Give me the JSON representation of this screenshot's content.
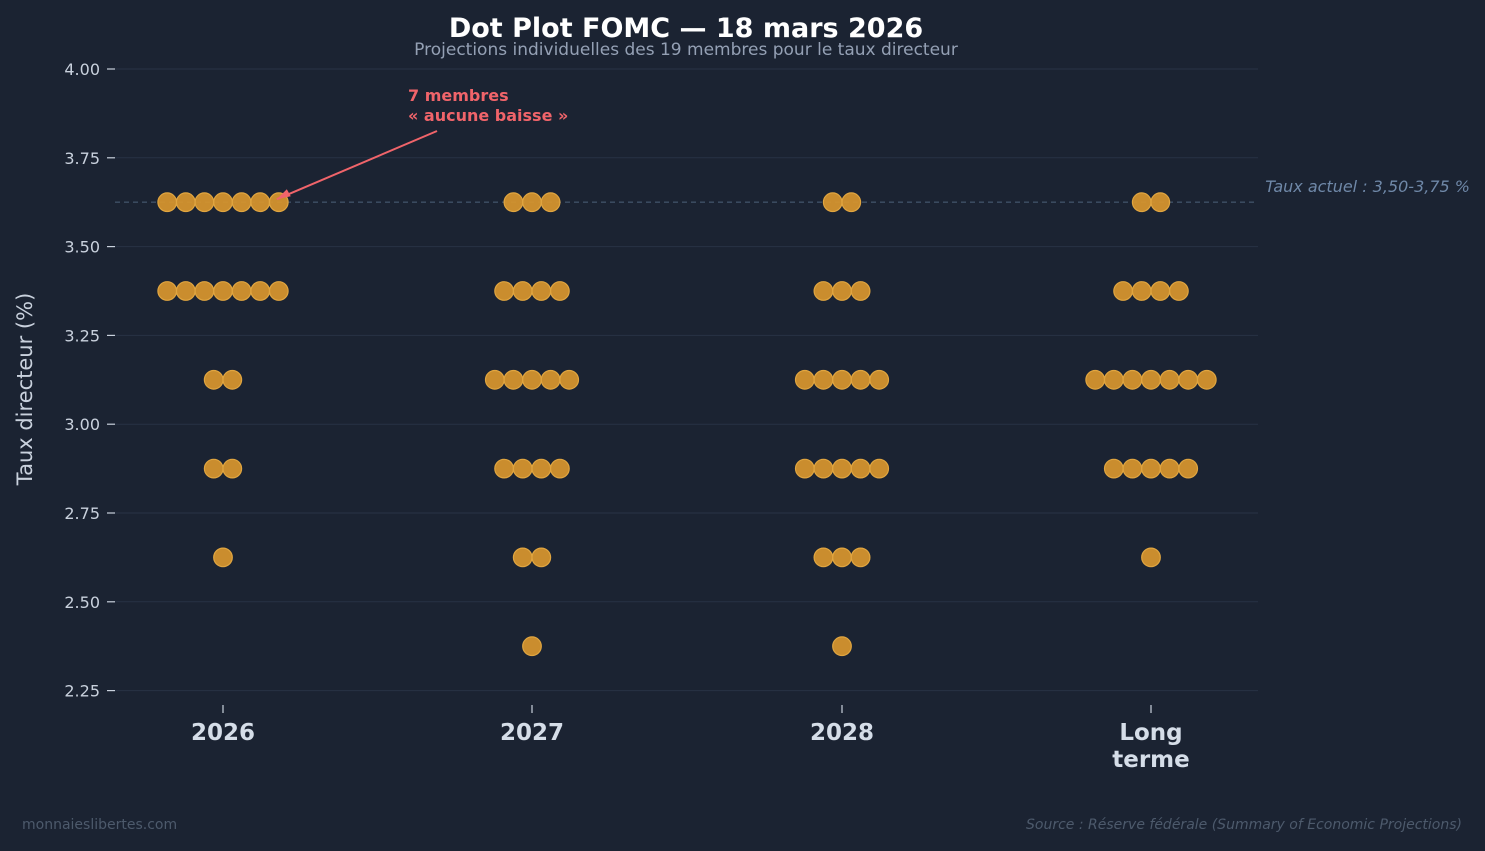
{
  "colors": {
    "background": "#1b2332",
    "dot_fill": "#d4942e",
    "dot_stroke": "#e0a540",
    "grid": "#283345",
    "title": "#ffffff",
    "subtitle": "#94a0b4",
    "tick_text": "#c9d1dd",
    "category_text": "#d5dde8",
    "axis_label": "#c9d1dd",
    "current_rate_line": "#3f5066",
    "current_rate_text": "#6f88a8",
    "annotation": "#f0646a",
    "footer": "#4d5a6c"
  },
  "chart_data": {
    "type": "scatter",
    "title": "Dot Plot FOMC — 18 mars 2026",
    "subtitle": "Projections individuelles des 19 membres pour le taux directeur",
    "xlabel": "",
    "ylabel": "Taux directeur (%)",
    "ylim": [
      2.2,
      4.0
    ],
    "yticks": [
      "2.25",
      "2.50",
      "2.75",
      "3.00",
      "3.25",
      "3.50",
      "3.75",
      "4.00"
    ],
    "grid": true,
    "categories": [
      "2026",
      "2027",
      "2028",
      "Long\nterme"
    ],
    "projections": [
      {
        "category": "2026",
        "levels": [
          {
            "rate": 3.625,
            "count": 7
          },
          {
            "rate": 3.375,
            "count": 7
          },
          {
            "rate": 3.125,
            "count": 2
          },
          {
            "rate": 2.875,
            "count": 2
          },
          {
            "rate": 2.625,
            "count": 1
          }
        ]
      },
      {
        "category": "2027",
        "levels": [
          {
            "rate": 3.625,
            "count": 3
          },
          {
            "rate": 3.375,
            "count": 4
          },
          {
            "rate": 3.125,
            "count": 5
          },
          {
            "rate": 2.875,
            "count": 4
          },
          {
            "rate": 2.625,
            "count": 2
          },
          {
            "rate": 2.375,
            "count": 1
          }
        ]
      },
      {
        "category": "2028",
        "levels": [
          {
            "rate": 3.625,
            "count": 2
          },
          {
            "rate": 3.375,
            "count": 3
          },
          {
            "rate": 3.125,
            "count": 5
          },
          {
            "rate": 2.875,
            "count": 5
          },
          {
            "rate": 2.625,
            "count": 3
          },
          {
            "rate": 2.375,
            "count": 1
          }
        ]
      },
      {
        "category": "Long\nterme",
        "levels": [
          {
            "rate": 3.625,
            "count": 2
          },
          {
            "rate": 3.375,
            "count": 4
          },
          {
            "rate": 3.125,
            "count": 7
          },
          {
            "rate": 2.875,
            "count": 5
          },
          {
            "rate": 2.625,
            "count": 1
          }
        ]
      }
    ],
    "reference_line": {
      "value": 3.625,
      "label": "Taux actuel : 3,50-3,75 %"
    },
    "annotations": [
      {
        "text": "7 membres\n« aucune baisse »",
        "target_category": "2026",
        "target_rate": 3.625
      }
    ]
  },
  "footer": {
    "watermark": "monnaieslibertes.com",
    "source": "Source : Réserve fédérale (Summary of Economic Projections)"
  }
}
